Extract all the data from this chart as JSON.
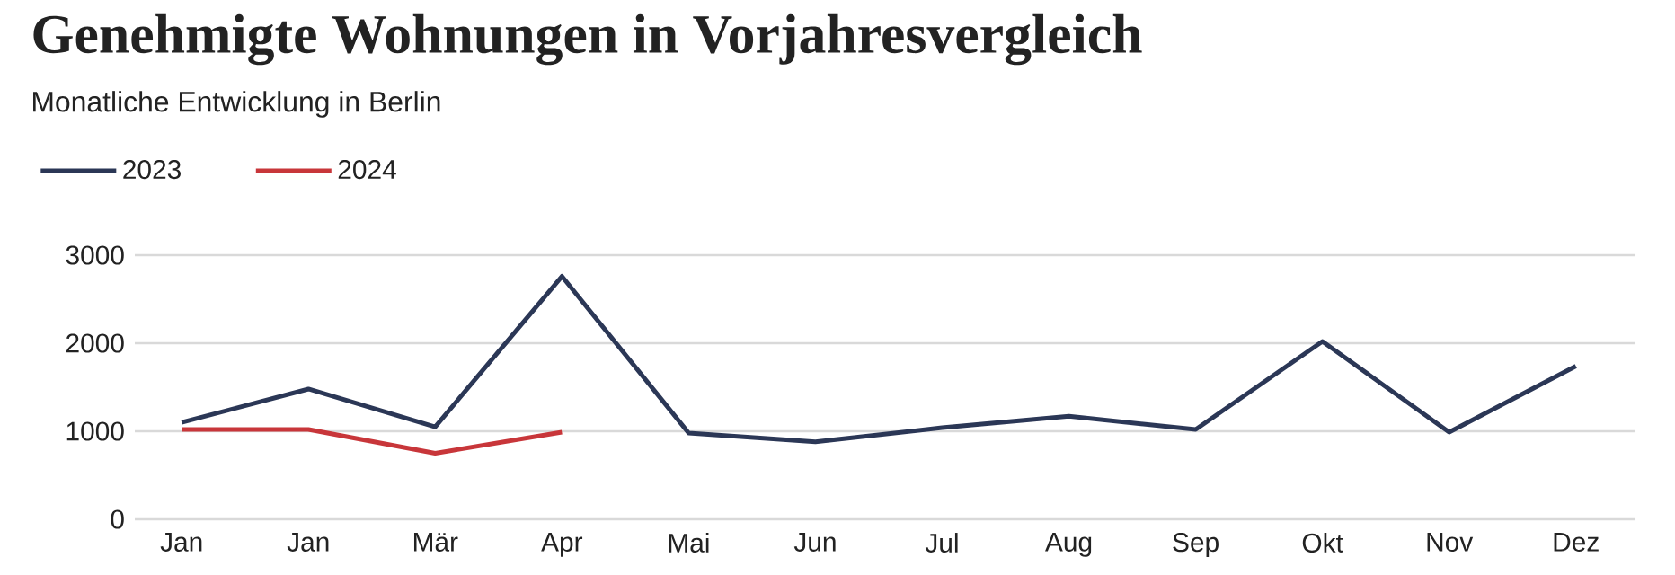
{
  "chart_data": {
    "type": "line",
    "title": "Genehmigte Wohnungen in Vorjahresvergleich",
    "subtitle": "Monatliche Entwicklung in Berlin",
    "categories": [
      "Jan",
      "Jan",
      "Mär",
      "Apr",
      "Mai",
      "Jun",
      "Jul",
      "Aug",
      "Sep",
      "Okt",
      "Nov",
      "Dez"
    ],
    "series": [
      {
        "name": "2023",
        "color": "#2b3756",
        "values": [
          1100,
          1480,
          1050,
          2760,
          980,
          880,
          1040,
          1170,
          1020,
          2020,
          990,
          1740
        ]
      },
      {
        "name": "2024",
        "color": "#c8363a",
        "values": [
          1020,
          1020,
          750,
          990,
          null,
          null,
          null,
          null,
          null,
          null,
          null,
          null
        ]
      }
    ],
    "ylim": [
      0,
      3000
    ],
    "yticks": [
      0,
      1000,
      2000,
      3000
    ],
    "grid": "y",
    "legend": "top left"
  }
}
